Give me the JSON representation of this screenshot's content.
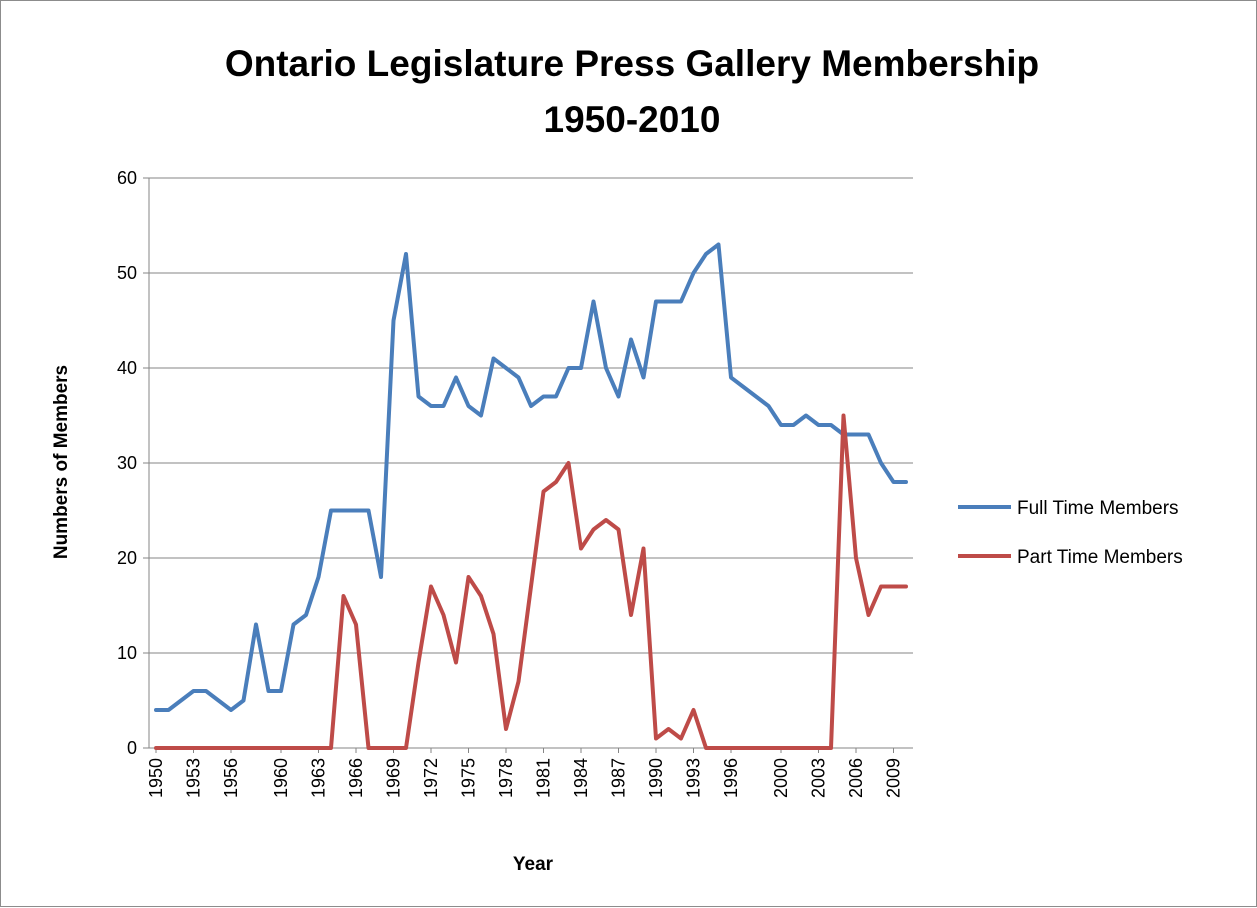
{
  "chart_data": {
    "type": "line",
    "title_lines": [
      "Ontario Legislature Press Gallery Membership",
      "1950-2010"
    ],
    "xlabel": "Year",
    "ylabel": "Numbers of Members",
    "ylim": [
      0,
      60
    ],
    "yticks": [
      0,
      10,
      20,
      30,
      40,
      50,
      60
    ],
    "grid": "horizontal",
    "legend_position": "right",
    "x": [
      1950,
      1951,
      1953,
      1954,
      1956,
      1957,
      1958,
      1959,
      1960,
      1961,
      1962,
      1963,
      1964,
      1965,
      1966,
      1967,
      1968,
      1969,
      1970,
      1971,
      1972,
      1973,
      1974,
      1975,
      1976,
      1977,
      1978,
      1979,
      1980,
      1981,
      1982,
      1983,
      1984,
      1985,
      1986,
      1987,
      1988,
      1989,
      1990,
      1991,
      1992,
      1993,
      1994,
      1995,
      1996,
      1997,
      1998,
      1999,
      2000,
      2001,
      2002,
      2003,
      2004,
      2005,
      2006,
      2007,
      2008,
      2009,
      2010
    ],
    "x_tick_labels": [
      "1950",
      "1953",
      "1956",
      "1960",
      "1963",
      "1966",
      "1969",
      "1972",
      "1975",
      "1978",
      "1981",
      "1984",
      "1987",
      "1990",
      "1993",
      "1996",
      "2000",
      "2003",
      "2006",
      "2009"
    ],
    "series": [
      {
        "name": "Full Time Members",
        "color": "#4a7ebb",
        "values": [
          4,
          4,
          6,
          6,
          4,
          5,
          13,
          6,
          6,
          13,
          14,
          18,
          25,
          25,
          25,
          25,
          18,
          45,
          52,
          37,
          36,
          36,
          39,
          36,
          35,
          41,
          40,
          39,
          36,
          37,
          37,
          40,
          40,
          47,
          40,
          37,
          43,
          39,
          47,
          47,
          47,
          50,
          52,
          53,
          39,
          38,
          37,
          36,
          34,
          34,
          35,
          34,
          34,
          33,
          33,
          33,
          30,
          28,
          28
        ]
      },
      {
        "name": "Part Time Members",
        "color": "#be4b48",
        "values": [
          0,
          0,
          0,
          0,
          0,
          0,
          0,
          0,
          0,
          0,
          0,
          0,
          0,
          16,
          13,
          0,
          0,
          0,
          0,
          9,
          17,
          14,
          9,
          18,
          16,
          12,
          2,
          7,
          17,
          27,
          28,
          30,
          21,
          23,
          24,
          23,
          14,
          21,
          1,
          2,
          1,
          4,
          0,
          0,
          0,
          0,
          0,
          0,
          0,
          0,
          0,
          0,
          0,
          35,
          20,
          14,
          17,
          17,
          17
        ]
      }
    ]
  }
}
